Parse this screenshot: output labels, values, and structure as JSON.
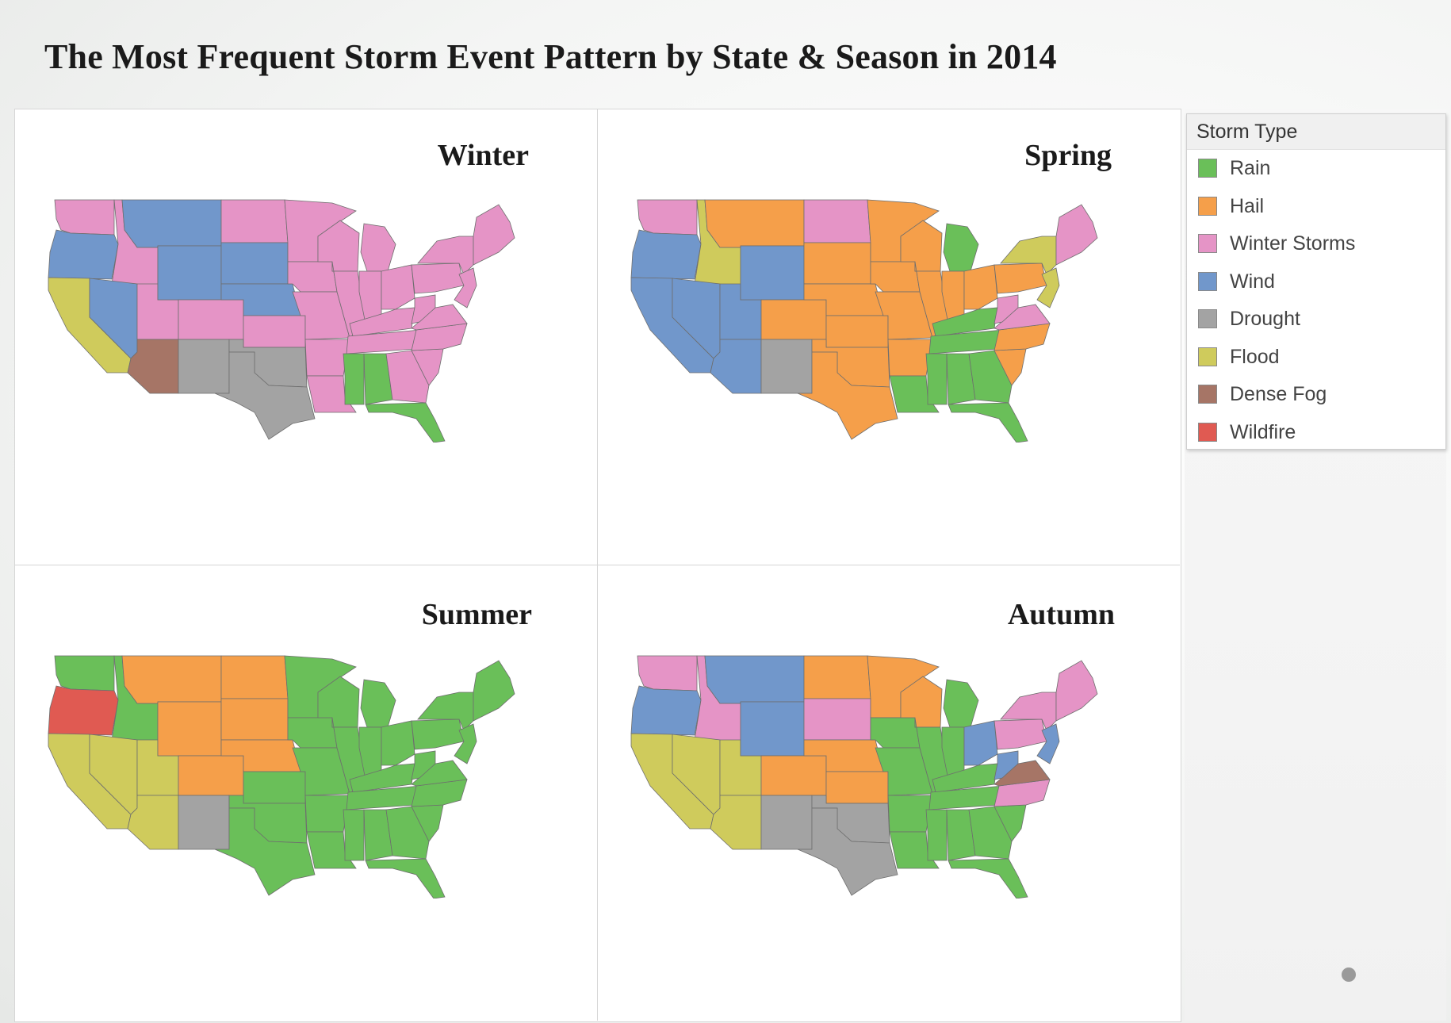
{
  "title": "The Most Frequent Storm Event Pattern by State & Season in 2014",
  "legend": {
    "title": "Storm Type",
    "items": [
      {
        "label": "Rain",
        "color": "#6abf59"
      },
      {
        "label": "Hail",
        "color": "#f59f4a"
      },
      {
        "label": "Winter Storms",
        "color": "#e594c6"
      },
      {
        "label": "Wind",
        "color": "#7197cb"
      },
      {
        "label": "Drought",
        "color": "#a3a3a3"
      },
      {
        "label": "Flood",
        "color": "#cfcb5c"
      },
      {
        "label": "Dense Fog",
        "color": "#a67566"
      },
      {
        "label": "Wildfire",
        "color": "#e05a52"
      }
    ]
  },
  "seasons": [
    {
      "label": "Winter",
      "states": {
        "WA": "Winter Storms",
        "OR": "Wind",
        "CA": "Flood",
        "ID": "Winter Storms",
        "NV": "Wind",
        "AZ": "Dense Fog",
        "UT": "Winter Storms",
        "MT": "Wind",
        "WY": "Wind",
        "CO": "Winter Storms",
        "NM": "Drought",
        "ND": "Winter Storms",
        "SD": "Wind",
        "NE": "Wind",
        "KS": "Winter Storms",
        "OK": "Drought",
        "TX": "Drought",
        "MN": "Winter Storms",
        "IA": "Winter Storms",
        "MO": "Winter Storms",
        "AR": "Winter Storms",
        "LA": "Winter Storms",
        "WI": "Winter Storms",
        "IL": "Winter Storms",
        "MI": "Winter Storms",
        "IN": "Winter Storms",
        "OH": "Winter Storms",
        "KY": "Winter Storms",
        "TN": "Winter Storms",
        "MS": "Rain",
        "AL": "Rain",
        "GA": "Winter Storms",
        "FL": "Rain",
        "SC": "Winter Storms",
        "NC": "Winter Storms",
        "VA": "Winter Storms",
        "WV": "Winter Storms",
        "PA": "Winter Storms",
        "NY": "Winter Storms",
        "NE_REGION": "Winter Storms",
        "MID_ATL": "Winter Storms"
      }
    },
    {
      "label": "Spring",
      "states": {
        "WA": "Winter Storms",
        "OR": "Wind",
        "CA": "Wind",
        "ID": "Flood",
        "NV": "Wind",
        "AZ": "Wind",
        "UT": "Wind",
        "MT": "Hail",
        "WY": "Wind",
        "CO": "Hail",
        "NM": "Drought",
        "ND": "Winter Storms",
        "SD": "Hail",
        "NE": "Hail",
        "KS": "Hail",
        "OK": "Hail",
        "TX": "Hail",
        "MN": "Hail",
        "IA": "Hail",
        "MO": "Hail",
        "AR": "Hail",
        "LA": "Rain",
        "WI": "Hail",
        "IL": "Hail",
        "MI": "Rain",
        "IN": "Hail",
        "OH": "Hail",
        "KY": "Rain",
        "TN": "Rain",
        "MS": "Rain",
        "AL": "Rain",
        "GA": "Rain",
        "FL": "Rain",
        "SC": "Hail",
        "NC": "Hail",
        "VA": "Winter Storms",
        "WV": "Winter Storms",
        "PA": "Hail",
        "NY": "Flood",
        "NE_REGION": "Winter Storms",
        "MID_ATL": "Flood"
      }
    },
    {
      "label": "Summer",
      "states": {
        "WA": "Rain",
        "OR": "Wildfire",
        "CA": "Flood",
        "ID": "Rain",
        "NV": "Flood",
        "AZ": "Flood",
        "UT": "Flood",
        "MT": "Hail",
        "WY": "Hail",
        "CO": "Hail",
        "NM": "Drought",
        "ND": "Hail",
        "SD": "Hail",
        "NE": "Hail",
        "KS": "Rain",
        "OK": "Rain",
        "TX": "Rain",
        "MN": "Rain",
        "IA": "Rain",
        "MO": "Rain",
        "AR": "Rain",
        "LA": "Rain",
        "WI": "Rain",
        "IL": "Rain",
        "MI": "Rain",
        "IN": "Rain",
        "OH": "Rain",
        "KY": "Rain",
        "TN": "Rain",
        "MS": "Rain",
        "AL": "Rain",
        "GA": "Rain",
        "FL": "Rain",
        "SC": "Rain",
        "NC": "Rain",
        "VA": "Rain",
        "WV": "Rain",
        "PA": "Rain",
        "NY": "Rain",
        "NE_REGION": "Rain",
        "MID_ATL": "Rain"
      }
    },
    {
      "label": "Autumn",
      "states": {
        "WA": "Winter Storms",
        "OR": "Wind",
        "CA": "Flood",
        "ID": "Winter Storms",
        "NV": "Flood",
        "AZ": "Flood",
        "UT": "Flood",
        "MT": "Wind",
        "WY": "Wind",
        "CO": "Hail",
        "NM": "Drought",
        "ND": "Hail",
        "SD": "Winter Storms",
        "NE": "Hail",
        "KS": "Hail",
        "OK": "Drought",
        "TX": "Drought",
        "MN": "Hail",
        "IA": "Rain",
        "MO": "Rain",
        "AR": "Rain",
        "LA": "Rain",
        "WI": "Hail",
        "IL": "Rain",
        "MI": "Rain",
        "IN": "Rain",
        "OH": "Wind",
        "KY": "Rain",
        "TN": "Rain",
        "MS": "Rain",
        "AL": "Rain",
        "GA": "Rain",
        "FL": "Rain",
        "SC": "Rain",
        "NC": "Winter Storms",
        "VA": "Dense Fog",
        "WV": "Wind",
        "PA": "Winter Storms",
        "NY": "Winter Storms",
        "NE_REGION": "Winter Storms",
        "MID_ATL": "Wind"
      }
    }
  ]
}
